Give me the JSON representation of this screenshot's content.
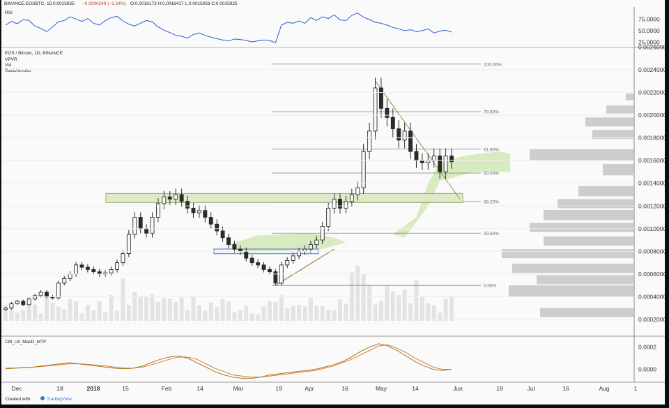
{
  "header": {
    "symbol": "BINANCE:EOSBTC, 1D",
    "last": "0.0015925",
    "change": "−0.0000249 (−1.54%)",
    "ohlc": "O:0.0016173 H:0.0016417 L:0.0015059 C:0.0015925"
  },
  "rsi_panel": {
    "label": "RSI"
  },
  "price_panel": {
    "label": "EOS / Bitcoin, 1D, BINANCE",
    "indicators": [
      "VPVR",
      "Vol",
      "Ravichimoku"
    ]
  },
  "macd_panel": {
    "label": "CM_Ult_MacD_MTF"
  },
  "footer": {
    "created_with": "Created with",
    "brand": "TradingView"
  },
  "colors": {
    "candle": "#2b2b2b",
    "rsi_line": "#2a5bd7",
    "trendline": "#6f9e3c",
    "support_line": "#b07a4a",
    "zone_fill": "#dbe8c4",
    "zone_stroke": "#8aa35a",
    "cloud": "#cfe6b0",
    "vpvr": "#bdbdbd",
    "volume": "#cfcfcf",
    "macd": "#a37a2b",
    "signal": "#e07830",
    "blue_zone": "#7a9ad8"
  },
  "chart_data": [
    {
      "type": "line",
      "name": "RSI",
      "y_ticks": [
        "75.0000",
        "50.0000",
        "25.0000"
      ],
      "ylim": [
        20,
        95
      ],
      "values": [
        62,
        70,
        65,
        74,
        72,
        60,
        55,
        48,
        58,
        69,
        72,
        80,
        75,
        70,
        76,
        66,
        62,
        72,
        78,
        81,
        71,
        64,
        60,
        66,
        72,
        69,
        58,
        51,
        46,
        40,
        38,
        34,
        42,
        45,
        40,
        36,
        33,
        30,
        28,
        32,
        31,
        29,
        26,
        28,
        30,
        29,
        24,
        62,
        68,
        66,
        71,
        66,
        78,
        72,
        80,
        76,
        84,
        73,
        72,
        83,
        88,
        79,
        74,
        68,
        66,
        62,
        57,
        54,
        50,
        52,
        48,
        50,
        54,
        45,
        49,
        51,
        47
      ]
    },
    {
      "type": "candlestick",
      "name": "EOS / Bitcoin, 1D, BINANCE",
      "y_ticks": [
        "0.0026000",
        "0.0024000",
        "0.0022000",
        "0.0020000",
        "0.0018000",
        "0.0016000",
        "0.0014000",
        "0.0012000",
        "0.0010000",
        "0.0008000",
        "0.0006000",
        "0.0004000",
        "0.0002000"
      ],
      "ylim": [
        0.0001,
        0.0026
      ],
      "x_ticks": [
        "Dec",
        "18",
        "2018",
        "15",
        "Feb",
        "14",
        "Mar",
        "19",
        "Apr",
        "16",
        "May",
        "14",
        "Jun",
        "18",
        "Jul",
        "16",
        "Aug",
        "1"
      ],
      "closes": [
        0.0003,
        0.00034,
        0.00036,
        0.00033,
        0.00038,
        0.00041,
        0.00044,
        0.0004,
        0.00039,
        0.00052,
        0.00056,
        0.0006,
        0.00068,
        0.00066,
        0.00064,
        0.00062,
        0.0006,
        0.00061,
        0.00064,
        0.0007,
        0.00078,
        0.00095,
        0.0011,
        0.001,
        0.00096,
        0.0011,
        0.00122,
        0.00128,
        0.00126,
        0.0013,
        0.00124,
        0.00118,
        0.00114,
        0.00116,
        0.0011,
        0.00104,
        0.00098,
        0.00092,
        0.00086,
        0.00082,
        0.0008,
        0.00074,
        0.0007,
        0.00068,
        0.00064,
        0.00062,
        0.00052,
        0.00068,
        0.00072,
        0.00076,
        0.0008,
        0.00082,
        0.00086,
        0.0009,
        0.00102,
        0.00118,
        0.00126,
        0.00118,
        0.00124,
        0.0013,
        0.00136,
        0.00168,
        0.00186,
        0.00224,
        0.00206,
        0.00198,
        0.00188,
        0.00178,
        0.00186,
        0.00168,
        0.0016,
        0.00158,
        0.0016,
        0.00164,
        0.0015,
        0.00164,
        0.00159
      ],
      "fib_levels": [
        {
          "label": "100.00%",
          "value": 0.00245
        },
        {
          "label": "78.60%",
          "value": 0.00203
        },
        {
          "label": "61.80%",
          "value": 0.0017
        },
        {
          "label": "50.00%",
          "value": 0.00149
        },
        {
          "label": "38.20%",
          "value": 0.00124
        },
        {
          "label": "23.60%",
          "value": 0.00096
        },
        {
          "label": "0.00%",
          "value": 0.0005
        }
      ]
    },
    {
      "type": "line",
      "name": "CM_Ult_MacD_MTF",
      "y_ticks": [
        "0.0002",
        "0.0000"
      ],
      "ylim": [
        -9e-05,
        0.00026
      ],
      "macd": [
        5e-06,
        1e-05,
        1.5e-05,
        2e-05,
        3e-05,
        4e-05,
        5e-05,
        6e-05,
        5e-05,
        4e-05,
        3e-05,
        2e-05,
        1e-05,
        5e-06,
        1e-05,
        3e-05,
        6e-05,
        9e-05,
        0.00011,
        0.00012,
        0.0001,
        6e-05,
        2e-05,
        -2e-05,
        -5e-05,
        -7e-05,
        -8e-05,
        -8e-05,
        -7e-05,
        -5e-05,
        -4e-05,
        -3e-05,
        -2e-05,
        -1e-05,
        0.0,
        2e-05,
        4e-05,
        7e-05,
        0.00011,
        0.00016,
        0.0002,
        0.00023,
        0.00021,
        0.00017,
        0.00012,
        7e-05,
        3e-05,
        0.0,
        -1e-05,
        0.0
      ],
      "signal": [
        1e-05,
        1.2e-05,
        1.6e-05,
        2e-05,
        2.6e-05,
        3.4e-05,
        4.2e-05,
        5e-05,
        5e-05,
        4.5e-05,
        3.8e-05,
        3e-05,
        2e-05,
        1.2e-05,
        1e-05,
        2e-05,
        4e-05,
        6.5e-05,
        9e-05,
        0.00011,
        0.00011,
        9e-05,
        5e-05,
        1e-05,
        -2e-05,
        -5e-05,
        -6e-05,
        -7e-05,
        -7e-05,
        -6e-05,
        -5e-05,
        -4e-05,
        -3e-05,
        -2e-05,
        -1e-05,
        1e-05,
        3e-05,
        6e-05,
        9e-05,
        0.00013,
        0.00017,
        0.00021,
        0.00022,
        0.00019,
        0.00015,
        0.0001,
        6e-05,
        2e-05,
        0.0,
        0.0
      ]
    }
  ]
}
